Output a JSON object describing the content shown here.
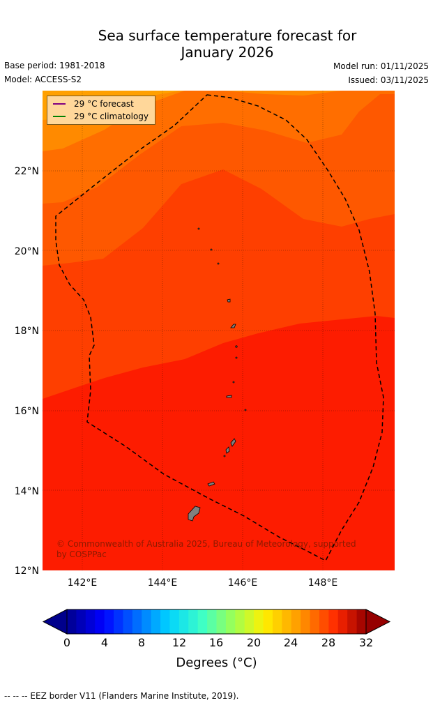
{
  "title_line1": "Sea surface temperature forecast for",
  "title_line2": "January 2026",
  "base_period": "Base period: 1981-2018",
  "model": "Model: ACCESS-S2",
  "model_run": "Model run: 01/11/2025",
  "issued": "Issued: 03/11/2025",
  "legend": {
    "forecast_label": "29 °C  forecast",
    "forecast_color": "#800080",
    "climatology_label": "29 °C  climatology",
    "climatology_color": "#008000"
  },
  "axes": {
    "lat_labels": [
      "22°N",
      "20°N",
      "18°N",
      "16°N",
      "14°N",
      "12°N"
    ],
    "lon_labels": [
      "142°E",
      "144°E",
      "146°E",
      "148°E"
    ]
  },
  "copyright": "© Commonwealth of Australia 2025, Bureau of Meteorology, supported by COSPPac",
  "colorbar": {
    "ticks": [
      "0",
      "4",
      "8",
      "12",
      "16",
      "20",
      "24",
      "28",
      "32"
    ],
    "label": "Degrees (°C)"
  },
  "footer": "--  --  -- EEZ border V11 (Flanders Marine Institute, 2019)."
}
